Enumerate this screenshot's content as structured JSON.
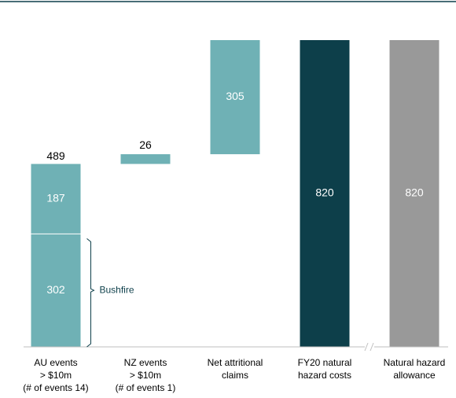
{
  "chart_data": {
    "type": "waterfall",
    "categories": [
      "AU events\n> $10m\n(# of events 14)",
      "NZ events\n> $10m\n(# of events 1)",
      "Net attritional\nclaims",
      "FY20 natural\nhazard costs",
      "Natural hazard\nallowance"
    ],
    "bars": [
      {
        "segments": [
          302,
          187
        ],
        "total": 489,
        "kind": "increase",
        "color": "#6fb1b5"
      },
      {
        "segments": [
          26
        ],
        "kind": "increase",
        "color": "#6fb1b5"
      },
      {
        "segments": [
          305
        ],
        "kind": "increase",
        "color": "#6fb1b5"
      },
      {
        "segments": [
          820
        ],
        "kind": "total",
        "color": "#0d3f4a"
      },
      {
        "segments": [
          820
        ],
        "kind": "total",
        "color": "#999999"
      }
    ],
    "annotation": {
      "text": "Bushfire",
      "bar": 0,
      "segment": 0
    },
    "axis_break_before": 4,
    "ylim": [
      0,
      820
    ]
  }
}
